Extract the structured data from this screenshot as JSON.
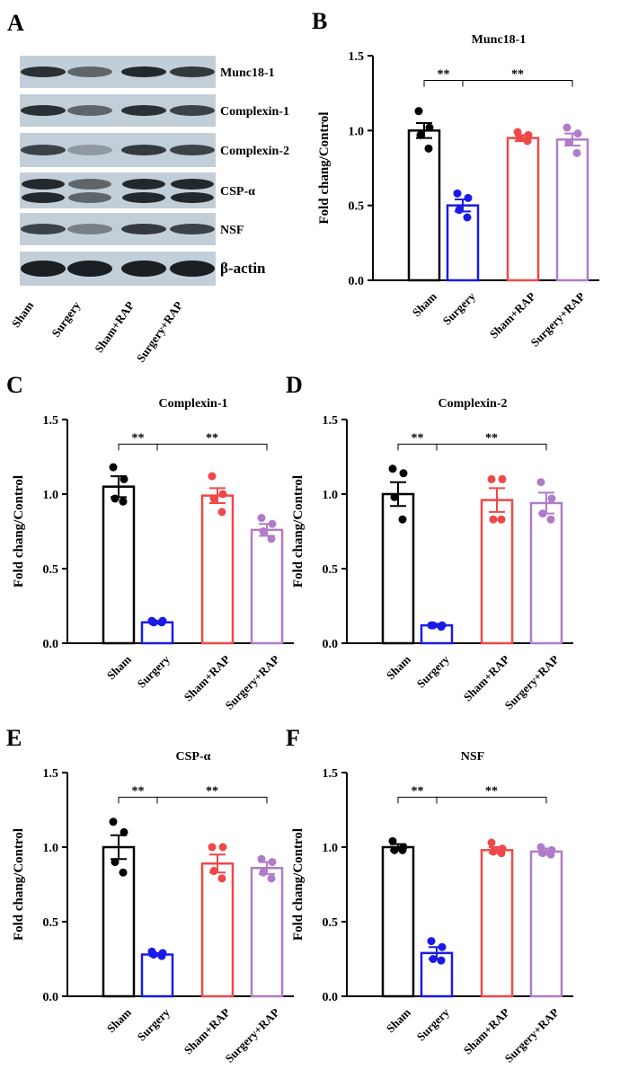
{
  "blot": {
    "panel": "A",
    "proteins": [
      "Munc18-1",
      "Complexin-1",
      "Complexin-2",
      "CSP-α",
      "NSF",
      "β-actin"
    ],
    "lanes": [
      "Sham",
      "Surgery",
      "Sham+RAP",
      "Surgery+RAP"
    ]
  },
  "chart_data": [
    {
      "type": "bar",
      "panel": "B",
      "title": "Munc18-1",
      "ylabel": "Fold chang/Control",
      "categories": [
        "Sham",
        "Surgery",
        "Sham+RAP",
        "Surgery+RAP"
      ],
      "colors": [
        "#000000",
        "#1a1ae6",
        "#f04848",
        "#b07cc8"
      ],
      "values": [
        1.0,
        0.5,
        0.95,
        0.94
      ],
      "errors": [
        0.05,
        0.04,
        0.02,
        0.04
      ],
      "points": [
        [
          1.13,
          1.02,
          0.97,
          0.88
        ],
        [
          0.58,
          0.55,
          0.47,
          0.42
        ],
        [
          0.99,
          0.97,
          0.95,
          0.93
        ],
        [
          1.02,
          0.98,
          0.92,
          0.85
        ]
      ],
      "ylim": [
        0,
        1.5
      ],
      "yticks": [
        {
          "value": 0,
          "label": "0.0"
        },
        0.5,
        {
          "value": 1,
          "label": "1.0"
        },
        1.5
      ],
      "annotations": [
        {
          "text": "**",
          "from": "Sham",
          "to": "Surgery"
        },
        {
          "text": "**",
          "from": "Surgery",
          "to": "Surgery+RAP"
        }
      ]
    },
    {
      "type": "bar",
      "panel": "C",
      "title": "Complexin-1",
      "ylabel": "Fold chang/Control",
      "categories": [
        "Sham",
        "Surgery",
        "Sham+RAP",
        "Surgery+RAP"
      ],
      "colors": [
        "#000000",
        "#1a1ae6",
        "#f04848",
        "#b07cc8"
      ],
      "values": [
        1.05,
        0.14,
        0.99,
        0.76
      ],
      "errors": [
        0.07,
        0.01,
        0.05,
        0.04
      ],
      "points": [
        [
          1.18,
          1.1,
          0.97,
          0.95
        ],
        [
          0.15,
          0.15,
          0.14,
          0.14
        ],
        [
          1.12,
          1.0,
          0.97,
          0.88
        ],
        [
          0.84,
          0.8,
          0.75,
          0.7
        ]
      ],
      "ylim": [
        0,
        1.5
      ],
      "yticks": [
        {
          "value": 0,
          "label": "0.0"
        },
        0.5,
        {
          "value": 1,
          "label": "1.0"
        },
        1.5
      ],
      "annotations": [
        {
          "text": "**",
          "from": "Sham",
          "to": "Surgery"
        },
        {
          "text": "**",
          "from": "Surgery",
          "to": "Surgery+RAP"
        }
      ]
    },
    {
      "type": "bar",
      "panel": "D",
      "title": "Complexin-2",
      "ylabel": "Fold chang/Control",
      "categories": [
        "Sham",
        "Surgery",
        "Sham+RAP",
        "Surgery+RAP"
      ],
      "colors": [
        "#000000",
        "#1a1ae6",
        "#f04848",
        "#b07cc8"
      ],
      "values": [
        1.0,
        0.12,
        0.96,
        0.94
      ],
      "errors": [
        0.08,
        0.01,
        0.08,
        0.07
      ],
      "points": [
        [
          1.17,
          1.14,
          0.98,
          0.83
        ],
        [
          0.12,
          0.12,
          0.12,
          0.11
        ],
        [
          1.1,
          1.1,
          0.83,
          0.83
        ],
        [
          1.08,
          0.97,
          0.87,
          0.83
        ]
      ],
      "ylim": [
        0,
        1.5
      ],
      "yticks": [
        {
          "value": 0,
          "label": "0.0"
        },
        0.5,
        {
          "value": 1,
          "label": "1.0"
        },
        1.5
      ],
      "annotations": [
        {
          "text": "**",
          "from": "Sham",
          "to": "Surgery"
        },
        {
          "text": "**",
          "from": "Surgery",
          "to": "Surgery+RAP"
        }
      ]
    },
    {
      "type": "bar",
      "panel": "E",
      "title": "CSP-α",
      "ylabel": "Fold chang/Control",
      "categories": [
        "Sham",
        "Surgery",
        "Sham+RAP",
        "Surgery+RAP"
      ],
      "colors": [
        "#000000",
        "#1a1ae6",
        "#f04848",
        "#b07cc8"
      ],
      "values": [
        1.0,
        0.28,
        0.89,
        0.86
      ],
      "errors": [
        0.08,
        0.01,
        0.06,
        0.04
      ],
      "points": [
        [
          1.17,
          1.1,
          0.9,
          0.83
        ],
        [
          0.3,
          0.29,
          0.28,
          0.27
        ],
        [
          1.0,
          1.0,
          0.84,
          0.79
        ],
        [
          0.92,
          0.9,
          0.83,
          0.79
        ]
      ],
      "ylim": [
        0,
        1.5
      ],
      "yticks": [
        {
          "value": 0,
          "label": "0.0"
        },
        0.5,
        {
          "value": 1,
          "label": "1.0"
        },
        1.5
      ],
      "annotations": [
        {
          "text": "**",
          "from": "Sham",
          "to": "Surgery"
        },
        {
          "text": "**",
          "from": "Surgery",
          "to": "Surgery+RAP"
        }
      ]
    },
    {
      "type": "bar",
      "panel": "F",
      "title": "NSF",
      "ylabel": "Fold chang/Control",
      "categories": [
        "Sham",
        "Surgery",
        "Sham+RAP",
        "Surgery+RAP"
      ],
      "colors": [
        "#000000",
        "#1a1ae6",
        "#f04848",
        "#b07cc8"
      ],
      "values": [
        1.0,
        0.29,
        0.98,
        0.97
      ],
      "errors": [
        0.02,
        0.04,
        0.02,
        0.02
      ],
      "points": [
        [
          1.04,
          1.0,
          0.98,
          0.98
        ],
        [
          0.37,
          0.33,
          0.25,
          0.24
        ],
        [
          1.03,
          0.99,
          0.97,
          0.96
        ],
        [
          1.0,
          0.98,
          0.96,
          0.95
        ]
      ],
      "ylim": [
        0,
        1.5
      ],
      "yticks": [
        {
          "value": 0,
          "label": "0.0"
        },
        0.5,
        {
          "value": 1,
          "label": "1.0"
        },
        1.5
      ],
      "annotations": [
        {
          "text": "**",
          "from": "Sham",
          "to": "Surgery"
        },
        {
          "text": "**",
          "from": "Surgery",
          "to": "Surgery+RAP"
        }
      ]
    }
  ]
}
